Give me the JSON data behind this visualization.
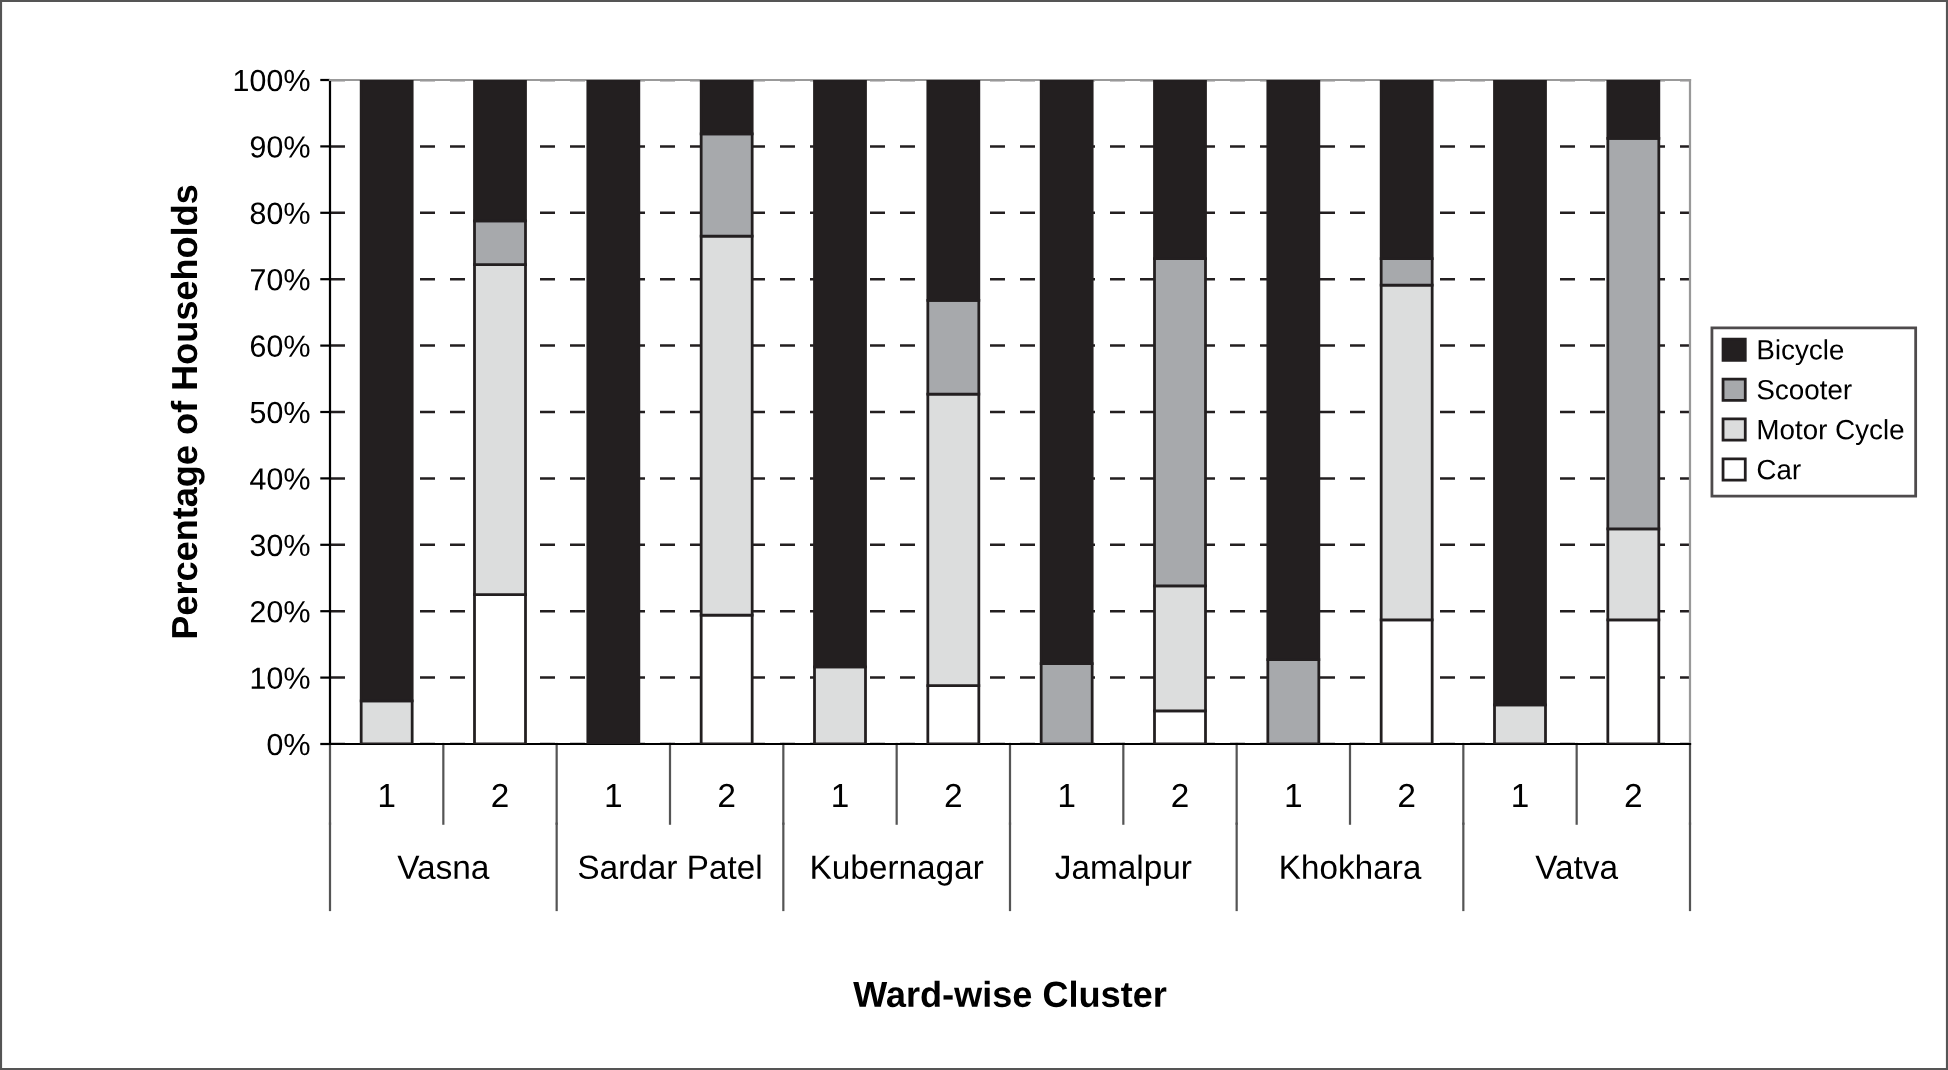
{
  "chart_data": {
    "type": "bar",
    "stacked": true,
    "xlabel": "Ward-wise Cluster",
    "ylabel": "Percentage of Households",
    "categories": [
      "1",
      "2",
      "1",
      "2",
      "1",
      "2",
      "1",
      "2",
      "1",
      "2",
      "1",
      "2"
    ],
    "annotations": [
      "Vasna",
      "Sardar Patel",
      "Kubernagar",
      "Jamalpur",
      "Khokhara",
      "Vatva"
    ],
    "series": [
      {
        "name": "Car",
        "color": "#ffffff",
        "values": [
          0,
          22.5,
          0,
          19.4,
          0,
          8.8,
          0,
          5.0,
          0,
          18.7,
          0,
          18.7
        ]
      },
      {
        "name": "Motor Cycle",
        "color": "#dcdddd",
        "values": [
          6.5,
          49.7,
          0,
          57.1,
          11.6,
          43.9,
          0,
          18.8,
          0,
          50.4,
          5.9,
          13.7
        ]
      },
      {
        "name": "Scooter",
        "color": "#a7a9ac",
        "values": [
          0,
          6.6,
          0,
          15.4,
          0,
          14.1,
          12.1,
          49.3,
          12.7,
          4.0,
          0,
          58.8
        ]
      },
      {
        "name": "Bicycle",
        "color": "#231f20",
        "values": [
          93.5,
          21.2,
          100,
          8.1,
          88.4,
          33.2,
          87.9,
          26.9,
          87.3,
          26.9,
          94.1,
          8.8
        ]
      }
    ],
    "ylim": [
      0,
      100
    ],
    "yticks": [
      {
        "value": 0,
        "label": "0%"
      },
      {
        "value": 10,
        "label": "10%"
      },
      {
        "value": 20,
        "label": "20%"
      },
      {
        "value": 30,
        "label": "30%"
      },
      {
        "value": 40,
        "label": "40%"
      },
      {
        "value": 50,
        "label": "50%"
      },
      {
        "value": 60,
        "label": "60%"
      },
      {
        "value": 70,
        "label": "70%"
      },
      {
        "value": 80,
        "label": "80%"
      },
      {
        "value": 90,
        "label": "90%"
      },
      {
        "value": 100,
        "label": "100%"
      }
    ],
    "grid": "y",
    "legend": "right"
  }
}
